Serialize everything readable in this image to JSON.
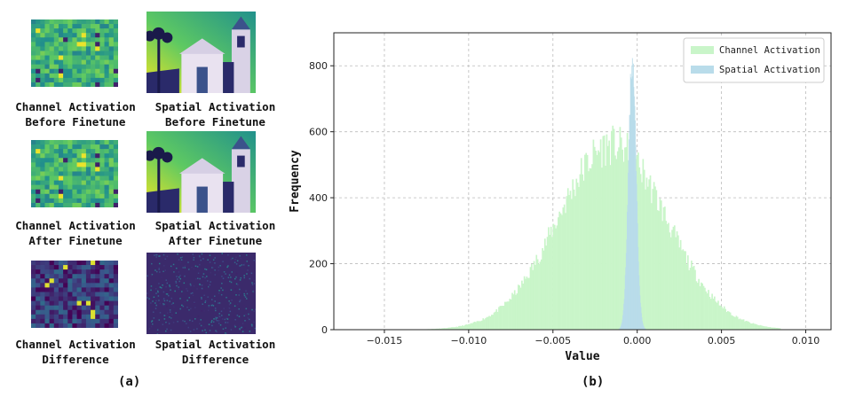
{
  "panel_a": {
    "label": "(a)",
    "rows": [
      {
        "channel_caption": [
          "Channel Activation",
          "Before Finetune"
        ],
        "spatial_caption": [
          "Spatial Activation",
          "Before Finetune"
        ]
      },
      {
        "channel_caption": [
          "Channel Activation",
          "After Finetune"
        ],
        "spatial_caption": [
          "Spatial Activation",
          "After Finetune"
        ]
      },
      {
        "channel_caption": [
          "Channel Activation",
          "Difference"
        ],
        "spatial_caption": [
          "Spatial Activation",
          "Difference"
        ]
      }
    ],
    "colors": {
      "viridis_dark": "#440154",
      "viridis_mid": "#21918c",
      "viridis_bright": "#fde725"
    }
  },
  "panel_b": {
    "label": "(b)"
  },
  "chart_data": {
    "type": "histogram",
    "xlabel": "Value",
    "ylabel": "Frequency",
    "xlim": [
      -0.018,
      0.0115
    ],
    "ylim": [
      0,
      900
    ],
    "xticks": [
      -0.015,
      -0.01,
      -0.005,
      0.0,
      0.005,
      0.01
    ],
    "xtick_labels": [
      "−0.015",
      "−0.010",
      "−0.005",
      "0.000",
      "0.005",
      "0.010"
    ],
    "yticks": [
      0,
      200,
      400,
      600,
      800
    ],
    "ytick_labels": [
      "0",
      "200",
      "400",
      "600",
      "800"
    ],
    "grid": true,
    "legend_position": "top-right",
    "series": [
      {
        "name": "Channel Activation",
        "color": "#c9f5c9",
        "distribution": "approximately normal",
        "mean": -0.0015,
        "std": 0.0032,
        "peak": 560,
        "range": [
          -0.0145,
          0.0085
        ]
      },
      {
        "name": "Spatial Activation",
        "color": "#b9dcea",
        "distribution": "narrow peak",
        "mean": -0.0003,
        "std": 0.00023,
        "peak": 820,
        "range": [
          -0.0011,
          0.0006
        ]
      }
    ]
  }
}
